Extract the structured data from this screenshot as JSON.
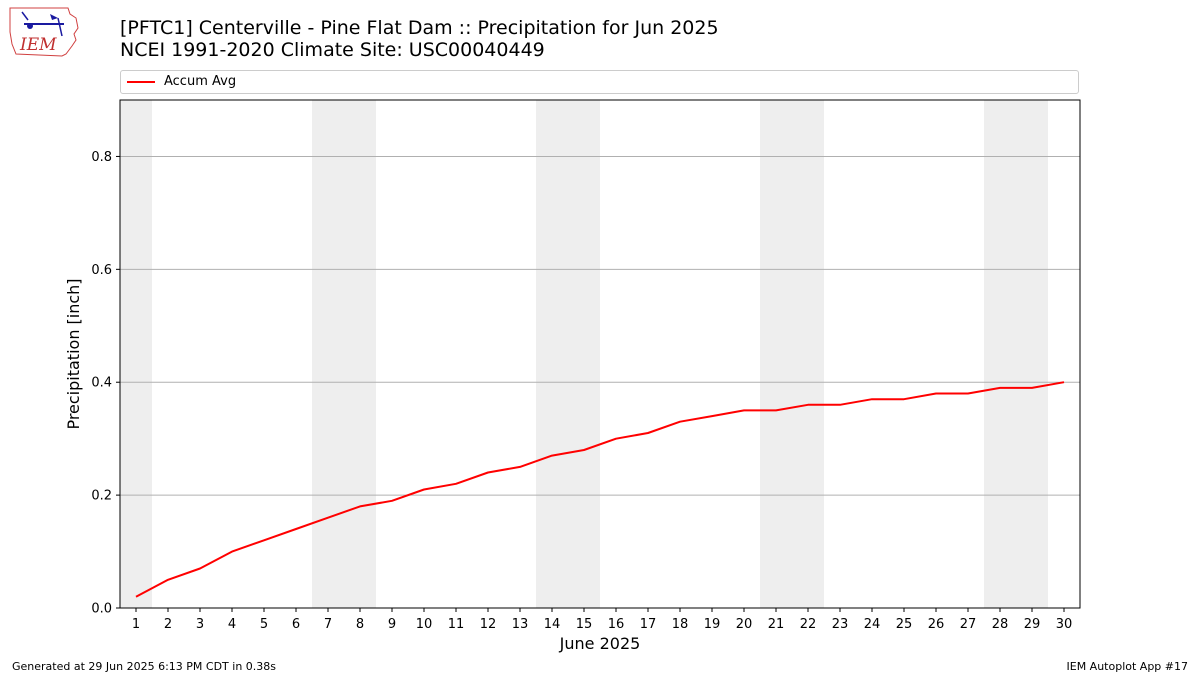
{
  "header": {
    "title_line1": "[PFTC1] Centerville - Pine Flat Dam :: Precipitation for Jun 2025",
    "title_line2": "NCEI 1991-2020 Climate Site: USC00040449"
  },
  "logo": {
    "text": "IEM",
    "icon": "iem-iowa-logo"
  },
  "footer": {
    "left": "Generated at 29 Jun 2025 6:13 PM CDT in 0.38s",
    "right": "IEM Autoplot App #17"
  },
  "colors": {
    "line": "#ff0000",
    "weekend_band": "#eeeeee",
    "grid": "#b0b0b0"
  },
  "chart_data": {
    "type": "line",
    "xlabel": "June 2025",
    "ylabel": "Precipitation [inch]",
    "x": [
      1,
      2,
      3,
      4,
      5,
      6,
      7,
      8,
      9,
      10,
      11,
      12,
      13,
      14,
      15,
      16,
      17,
      18,
      19,
      20,
      21,
      22,
      23,
      24,
      25,
      26,
      27,
      28,
      29,
      30
    ],
    "series": [
      {
        "name": "Accum Avg",
        "values": [
          0.02,
          0.05,
          0.07,
          0.1,
          0.12,
          0.14,
          0.16,
          0.18,
          0.19,
          0.21,
          0.22,
          0.24,
          0.25,
          0.27,
          0.28,
          0.3,
          0.31,
          0.33,
          0.34,
          0.35,
          0.35,
          0.36,
          0.36,
          0.37,
          0.37,
          0.38,
          0.38,
          0.39,
          0.39,
          0.4
        ]
      }
    ],
    "xlim": [
      0.5,
      30.5
    ],
    "ylim": [
      0,
      0.9
    ],
    "yticks": [
      "0.0",
      "0.2",
      "0.4",
      "0.6",
      "0.8"
    ],
    "weekend_bands": [
      [
        0.5,
        1.5
      ],
      [
        6.5,
        8.5
      ],
      [
        13.5,
        15.5
      ],
      [
        20.5,
        22.5
      ],
      [
        27.5,
        29.5
      ]
    ],
    "grid": "horizontal",
    "legend": "top"
  }
}
